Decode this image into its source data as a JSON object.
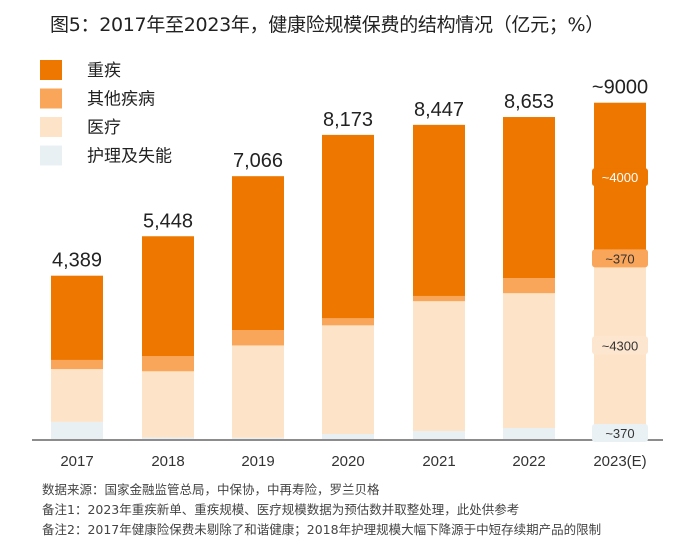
{
  "title": "图5：2017年至2023年，健康险规模保费的结构情况（亿元；%）",
  "notes": [
    "数据来源：国家金融监管总局，中保协，中再寿险，罗兰贝格",
    "备注1：2023年重疾新单、重疾规模、医疗规模数据为预估数并取整处理，此处供参考",
    "备注2：2017年健康险保费未剔除了和谐健康；2018年护理规模大幅下降源于中短存续期产品的限制"
  ],
  "chart_data": {
    "type": "bar",
    "stacked": true,
    "categories": [
      "2017",
      "2018",
      "2019",
      "2020",
      "2021",
      "2022",
      "2023(E)"
    ],
    "totals": [
      "4,389",
      "5,448",
      "7,066",
      "8,173",
      "8,447",
      "8,653",
      "~9000"
    ],
    "series": [
      {
        "name": "护理及失能",
        "color": "#E8F0F4",
        "values": [
          460,
          40,
          35,
          135,
          215,
          295,
          370
        ]
      },
      {
        "name": "医疗",
        "color": "#FDE3C8",
        "values": [
          1420,
          1780,
          2480,
          2920,
          3490,
          3625,
          4300
        ]
      },
      {
        "name": "其他疾病",
        "color": "#F9A55A",
        "values": [
          245,
          405,
          410,
          190,
          140,
          405,
          370
        ]
      },
      {
        "name": "重疾",
        "color": "#EE7700",
        "values": [
          2265,
          3225,
          4140,
          4930,
          4600,
          4330,
          4000
        ]
      }
    ],
    "legend_order": [
      "重疾",
      "其他疾病",
      "医疗",
      "护理及失能"
    ],
    "legend_position": "top-left",
    "segment_labels_2023": [
      "~370",
      "~4300",
      "~370",
      "~4000"
    ],
    "ylim": [
      0,
      9000
    ],
    "grid": false
  }
}
